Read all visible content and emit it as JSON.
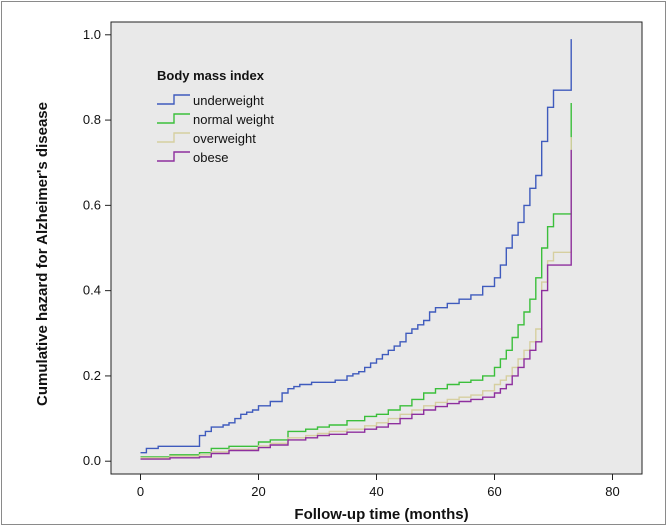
{
  "chart_data": {
    "type": "line",
    "step": true,
    "xlabel": "Follow-up time (months)",
    "ylabel": "Cumulative hazard for Alzheimer's disease",
    "xlim": [
      -5,
      85
    ],
    "ylim": [
      -0.03,
      1.03
    ],
    "xticks": [
      "0",
      "20",
      "40",
      "60",
      "80"
    ],
    "yticks": [
      "0.0",
      "0.2",
      "0.4",
      "0.6",
      "0.8",
      "1.0"
    ],
    "xtick_values": [
      0,
      20,
      40,
      60,
      80
    ],
    "ytick_values": [
      0.0,
      0.2,
      0.4,
      0.6,
      0.8,
      1.0
    ],
    "grid": false,
    "plot_background": "#e9e9e9",
    "legend": {
      "title": "Body mass index",
      "position": "top-left"
    },
    "series": [
      {
        "name": "underweight",
        "color": "#3f5bbd",
        "x": [
          0,
          1,
          3,
          8,
          10,
          11,
          12,
          14,
          15,
          16,
          17,
          18,
          19,
          20,
          22,
          24,
          25,
          26,
          27,
          29,
          31,
          33,
          35,
          36,
          37,
          38,
          39,
          40,
          41,
          42,
          43,
          44,
          45,
          46,
          47,
          48,
          49,
          50,
          52,
          54,
          56,
          58,
          60,
          61,
          62,
          63,
          64,
          65,
          66,
          67,
          68,
          69,
          70,
          71,
          72,
          73
        ],
        "y": [
          0.02,
          0.03,
          0.035,
          0.035,
          0.06,
          0.07,
          0.08,
          0.085,
          0.09,
          0.1,
          0.11,
          0.115,
          0.12,
          0.13,
          0.14,
          0.16,
          0.17,
          0.175,
          0.18,
          0.185,
          0.185,
          0.19,
          0.2,
          0.205,
          0.21,
          0.22,
          0.23,
          0.24,
          0.25,
          0.26,
          0.27,
          0.28,
          0.3,
          0.31,
          0.32,
          0.33,
          0.35,
          0.36,
          0.37,
          0.38,
          0.39,
          0.41,
          0.43,
          0.46,
          0.5,
          0.53,
          0.56,
          0.6,
          0.64,
          0.67,
          0.75,
          0.83,
          0.87,
          0.87,
          0.87,
          0.99
        ]
      },
      {
        "name": "normal weight",
        "color": "#3bbf3b",
        "x": [
          0,
          5,
          10,
          12,
          15,
          20,
          22,
          25,
          28,
          30,
          32,
          35,
          38,
          40,
          42,
          44,
          46,
          48,
          50,
          52,
          54,
          56,
          58,
          60,
          61,
          62,
          63,
          64,
          65,
          66,
          67,
          68,
          69,
          70,
          71,
          72,
          73
        ],
        "y": [
          0.01,
          0.015,
          0.02,
          0.03,
          0.035,
          0.045,
          0.05,
          0.07,
          0.075,
          0.08,
          0.085,
          0.095,
          0.105,
          0.11,
          0.12,
          0.13,
          0.145,
          0.16,
          0.17,
          0.18,
          0.185,
          0.19,
          0.2,
          0.22,
          0.24,
          0.26,
          0.29,
          0.32,
          0.35,
          0.38,
          0.43,
          0.5,
          0.55,
          0.58,
          0.58,
          0.58,
          0.84
        ]
      },
      {
        "name": "overweight",
        "color": "#d6cfa0",
        "x": [
          0,
          5,
          10,
          12,
          15,
          20,
          22,
          25,
          28,
          30,
          32,
          35,
          38,
          40,
          42,
          44,
          46,
          48,
          50,
          52,
          54,
          56,
          58,
          60,
          61,
          62,
          63,
          64,
          65,
          66,
          67,
          68,
          69,
          70,
          71,
          72,
          73
        ],
        "y": [
          0.008,
          0.012,
          0.015,
          0.022,
          0.028,
          0.036,
          0.042,
          0.055,
          0.06,
          0.065,
          0.07,
          0.075,
          0.083,
          0.09,
          0.1,
          0.11,
          0.12,
          0.13,
          0.138,
          0.145,
          0.15,
          0.155,
          0.165,
          0.18,
          0.19,
          0.2,
          0.22,
          0.24,
          0.26,
          0.28,
          0.31,
          0.42,
          0.47,
          0.49,
          0.49,
          0.49,
          0.76
        ]
      },
      {
        "name": "obese",
        "color": "#8e2f9e",
        "x": [
          0,
          5,
          10,
          12,
          15,
          20,
          22,
          25,
          28,
          30,
          32,
          35,
          38,
          40,
          42,
          44,
          46,
          48,
          50,
          52,
          54,
          56,
          58,
          60,
          61,
          62,
          63,
          64,
          65,
          66,
          67,
          68,
          69,
          70,
          71,
          72,
          73
        ],
        "y": [
          0.005,
          0.008,
          0.01,
          0.018,
          0.025,
          0.032,
          0.038,
          0.05,
          0.055,
          0.06,
          0.063,
          0.068,
          0.075,
          0.08,
          0.088,
          0.1,
          0.11,
          0.12,
          0.128,
          0.135,
          0.14,
          0.145,
          0.15,
          0.16,
          0.17,
          0.18,
          0.2,
          0.22,
          0.24,
          0.26,
          0.28,
          0.4,
          0.46,
          0.46,
          0.46,
          0.46,
          0.73
        ]
      }
    ]
  }
}
